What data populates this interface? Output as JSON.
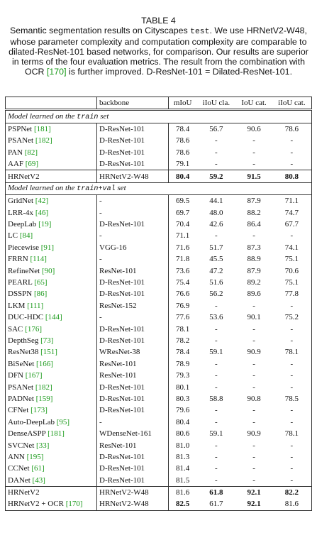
{
  "caption": {
    "label": "TABLE 4",
    "parts": [
      "Semantic segmentation results on Cityscapes ",
      "test",
      ". We use HRNetV2-W48, whose parameter complexity and computation complexity are comparable to dilated-ResNet-101 based networks, for comparison. Our results are superior in terms of the four evaluation metrics. The result from the combination with OCR ",
      "[170]",
      " is further improved. D-ResNet-101 = Dilated-ResNet-101."
    ]
  },
  "table": {
    "columns": [
      "backbone",
      "mIoU",
      "iIoU cla.",
      "IoU cat.",
      "iIoU cat."
    ],
    "sections": [
      {
        "title": [
          "Model learned on the ",
          "train",
          " set"
        ],
        "groups": [
          [
            {
              "method": "PSPNet",
              "cite": "[181]",
              "backbone": "D-ResNet-101",
              "scores": [
                "78.4",
                "56.7",
                "90.6",
                "78.6"
              ]
            },
            {
              "method": "PSANet",
              "cite": "[182]",
              "backbone": "D-ResNet-101",
              "scores": [
                "78.6",
                "-",
                "-",
                "-"
              ]
            },
            {
              "method": "PAN",
              "cite": "[82]",
              "backbone": "D-ResNet-101",
              "scores": [
                "78.6",
                "-",
                "-",
                "-"
              ]
            },
            {
              "method": "AAF",
              "cite": "[69]",
              "backbone": "D-ResNet-101",
              "scores": [
                "79.1",
                "-",
                "-",
                "-"
              ]
            }
          ],
          [
            {
              "method": "HRNetV2",
              "backbone": "HRNetV2-W48",
              "scores": [
                "80.4",
                "59.2",
                "91.5",
                "80.8"
              ],
              "bold": [
                0,
                1,
                2,
                3
              ]
            }
          ]
        ]
      },
      {
        "title": [
          "Model learned on the ",
          "train+val",
          " set"
        ],
        "groups": [
          [
            {
              "method": "GridNet",
              "cite": "[42]",
              "backbone": "-",
              "scores": [
                "69.5",
                "44.1",
                "87.9",
                "71.1"
              ]
            },
            {
              "method": "LRR-4x",
              "cite": "[46]",
              "backbone": "-",
              "scores": [
                "69.7",
                "48.0",
                "88.2",
                "74.7"
              ]
            },
            {
              "method": "DeepLab",
              "cite": "[19]",
              "backbone": "D-ResNet-101",
              "scores": [
                "70.4",
                "42.6",
                "86.4",
                "67.7"
              ]
            },
            {
              "method": "LC",
              "cite": "[84]",
              "backbone": "-",
              "scores": [
                "71.1",
                "-",
                "-",
                "-"
              ]
            },
            {
              "method": "Piecewise",
              "cite": "[91]",
              "backbone": "VGG-16",
              "scores": [
                "71.6",
                "51.7",
                "87.3",
                "74.1"
              ]
            },
            {
              "method": "FRRN",
              "cite": "[114]",
              "backbone": "-",
              "scores": [
                "71.8",
                "45.5",
                "88.9",
                "75.1"
              ]
            },
            {
              "method": "RefineNet",
              "cite": "[90]",
              "backbone": "ResNet-101",
              "scores": [
                "73.6",
                "47.2",
                "87.9",
                "70.6"
              ]
            },
            {
              "method": "PEARL",
              "cite": "[65]",
              "backbone": "D-ResNet-101",
              "scores": [
                "75.4",
                "51.6",
                "89.2",
                "75.1"
              ]
            },
            {
              "method": "DSSPN",
              "cite": "[86]",
              "backbone": "D-ResNet-101",
              "scores": [
                "76.6",
                "56.2",
                "89.6",
                "77.8"
              ]
            },
            {
              "method": "LKM",
              "cite": "[111]",
              "backbone": "ResNet-152",
              "scores": [
                "76.9",
                "-",
                "-",
                "-"
              ]
            },
            {
              "method": "DUC-HDC",
              "cite": "[144]",
              "backbone": "-",
              "scores": [
                "77.6",
                "53.6",
                "90.1",
                "75.2"
              ]
            },
            {
              "method": "SAC",
              "cite": "[176]",
              "backbone": "D-ResNet-101",
              "scores": [
                "78.1",
                "-",
                "-",
                "-"
              ]
            },
            {
              "method": "DepthSeg",
              "cite": "[73]",
              "backbone": "D-ResNet-101",
              "scores": [
                "78.2",
                "-",
                "-",
                "-"
              ]
            },
            {
              "method": "ResNet38",
              "cite": "[151]",
              "backbone": "WResNet-38",
              "scores": [
                "78.4",
                "59.1",
                "90.9",
                "78.1"
              ]
            },
            {
              "method": "BiSeNet",
              "cite": "[166]",
              "backbone": "ResNet-101",
              "scores": [
                "78.9",
                "-",
                "-",
                "-"
              ]
            },
            {
              "method": "DFN",
              "cite": "[167]",
              "backbone": "ResNet-101",
              "scores": [
                "79.3",
                "-",
                "-",
                "-"
              ]
            },
            {
              "method": "PSANet",
              "cite": "[182]",
              "backbone": "D-ResNet-101",
              "scores": [
                "80.1",
                "-",
                "-",
                "-"
              ]
            },
            {
              "method": "PADNet",
              "cite": "[159]",
              "backbone": "D-ResNet-101",
              "scores": [
                "80.3",
                "58.8",
                "90.8",
                "78.5"
              ]
            },
            {
              "method": "CFNet",
              "cite": "[173]",
              "backbone": "D-ResNet-101",
              "scores": [
                "79.6",
                "-",
                "-",
                "-"
              ]
            },
            {
              "method": "Auto-DeepLab",
              "cite": "[95]",
              "backbone": "-",
              "scores": [
                "80.4",
                "-",
                "-",
                "-"
              ]
            },
            {
              "method": "DenseASPP",
              "cite": "[181]",
              "backbone": "WDenseNet-161",
              "scores": [
                "80.6",
                "59.1",
                "90.9",
                "78.1"
              ]
            },
            {
              "method": "SVCNet",
              "cite": "[33]",
              "backbone": "ResNet-101",
              "scores": [
                "81.0",
                "-",
                "-",
                "-"
              ]
            },
            {
              "method": "ANN",
              "cite": "[195]",
              "backbone": "D-ResNet-101",
              "scores": [
                "81.3",
                "-",
                "-",
                "-"
              ]
            },
            {
              "method": "CCNet",
              "cite": "[61]",
              "backbone": "D-ResNet-101",
              "scores": [
                "81.4",
                "-",
                "-",
                "-"
              ]
            },
            {
              "method": "DANet",
              "cite": "[43]",
              "backbone": "D-ResNet-101",
              "scores": [
                "81.5",
                "-",
                "-",
                "-"
              ]
            }
          ],
          [
            {
              "method": "HRNetV2",
              "backbone": "HRNetV2-W48",
              "scores": [
                "81.6",
                "61.8",
                "92.1",
                "82.2"
              ],
              "bold": [
                1,
                2,
                3
              ]
            },
            {
              "method": "HRNetV2 + OCR",
              "cite": "[170]",
              "backbone": "HRNetV2-W48",
              "scores": [
                "82.5",
                "61.7",
                "92.1",
                "81.6"
              ],
              "bold": [
                0,
                2
              ]
            }
          ]
        ]
      }
    ]
  }
}
